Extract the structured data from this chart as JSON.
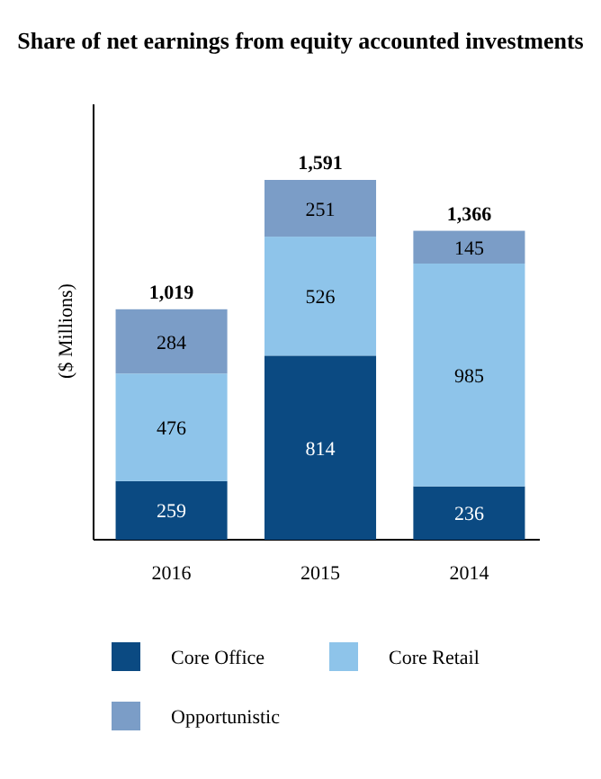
{
  "chart_data": {
    "type": "bar",
    "title": "Share of net earnings from equity accounted investments",
    "ylabel": "($ Millions)",
    "categories": [
      "2016",
      "2015",
      "2014"
    ],
    "stacked": true,
    "data_labels": true,
    "legend": "bottom",
    "series": [
      {
        "name": "Core Office",
        "color": "#0b4a82",
        "values": [
          259,
          814,
          236
        ]
      },
      {
        "name": "Core Retail",
        "color": "#8ec4ea",
        "values": [
          476,
          526,
          985
        ]
      },
      {
        "name": "Opportunistic",
        "color": "#7b9dc7",
        "values": [
          284,
          251,
          145
        ]
      }
    ],
    "totals": [
      "1,019",
      "1,591",
      "1,366"
    ]
  }
}
